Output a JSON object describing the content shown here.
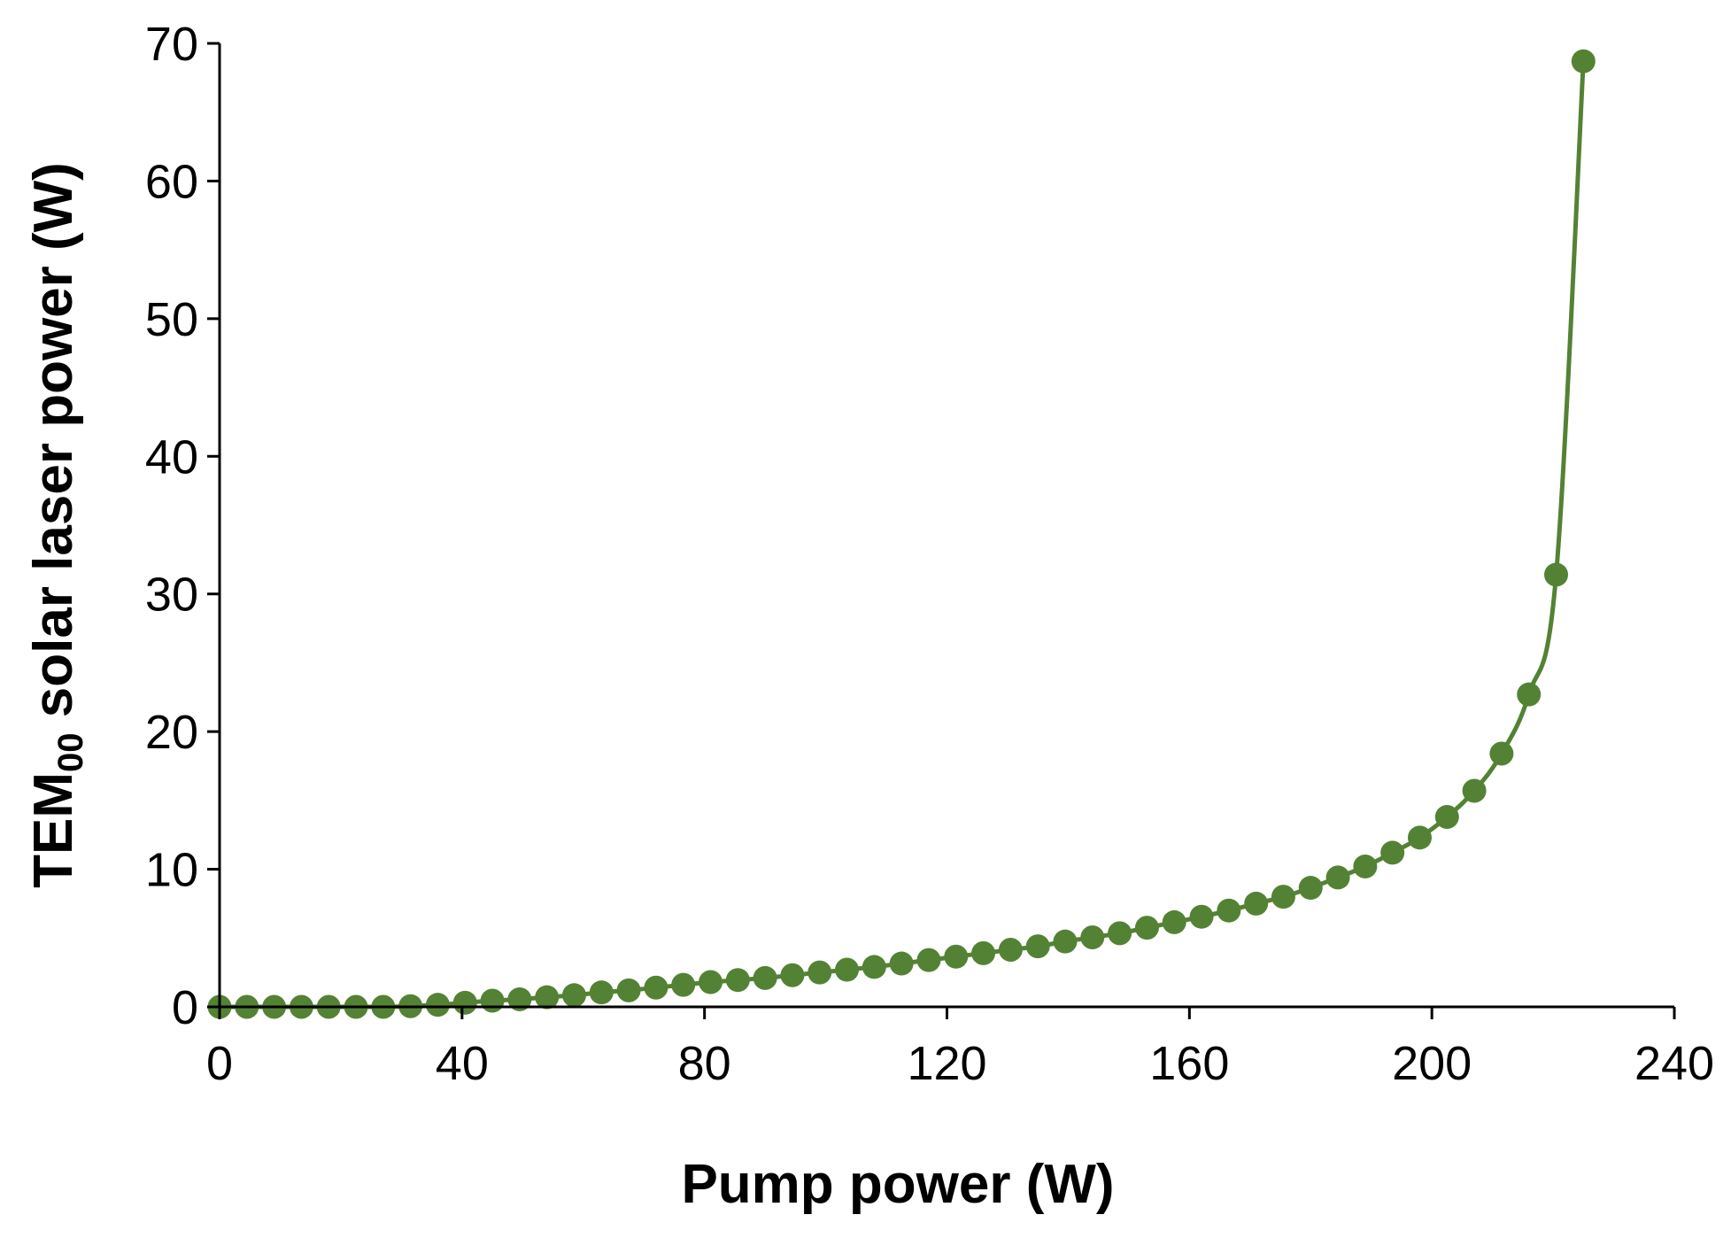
{
  "chart_data": {
    "type": "scatter",
    "title": "",
    "xlabel": "Pump power (W)",
    "ylabel": {
      "prefix": "TEM",
      "subscript": "00",
      "suffix": " solar laser power (W)"
    },
    "xlim": [
      0,
      240
    ],
    "ylim": [
      0,
      70
    ],
    "x_ticks": [
      0,
      40,
      80,
      120,
      160,
      200,
      240
    ],
    "y_ticks": [
      0,
      10,
      20,
      30,
      40,
      50,
      60,
      70
    ],
    "grid": false,
    "legend": "none",
    "series": [
      {
        "name": "TEM00 solar laser power",
        "color": "#548235",
        "marker": "circle",
        "line": "smooth",
        "points": [
          [
            0,
            0
          ],
          [
            4.5,
            0
          ],
          [
            9,
            0
          ],
          [
            13.5,
            0
          ],
          [
            18,
            0
          ],
          [
            22.5,
            0
          ],
          [
            27,
            0
          ],
          [
            31.5,
            0.05
          ],
          [
            36,
            0.15
          ],
          [
            40.5,
            0.3
          ],
          [
            45,
            0.45
          ],
          [
            49.5,
            0.55
          ],
          [
            54,
            0.7
          ],
          [
            58.5,
            0.85
          ],
          [
            63,
            1.05
          ],
          [
            67.5,
            1.2
          ],
          [
            72,
            1.4
          ],
          [
            76.5,
            1.6
          ],
          [
            81,
            1.8
          ],
          [
            85.5,
            1.95
          ],
          [
            90,
            2.1
          ],
          [
            94.5,
            2.3
          ],
          [
            99,
            2.5
          ],
          [
            103.5,
            2.7
          ],
          [
            108,
            2.9
          ],
          [
            112.5,
            3.15
          ],
          [
            117,
            3.4
          ],
          [
            121.5,
            3.65
          ],
          [
            126,
            3.9
          ],
          [
            130.5,
            4.15
          ],
          [
            135,
            4.4
          ],
          [
            139.5,
            4.75
          ],
          [
            144,
            5.05
          ],
          [
            148.5,
            5.35
          ],
          [
            153,
            5.75
          ],
          [
            157.5,
            6.15
          ],
          [
            162,
            6.55
          ],
          [
            166.5,
            7.0
          ],
          [
            171,
            7.5
          ],
          [
            175.5,
            8.0
          ],
          [
            180,
            8.65
          ],
          [
            184.5,
            9.4
          ],
          [
            189,
            10.2
          ],
          [
            193.5,
            11.2
          ],
          [
            198,
            12.3
          ],
          [
            202.5,
            13.8
          ],
          [
            207,
            15.7
          ],
          [
            211.5,
            18.4
          ],
          [
            216,
            22.7
          ],
          [
            220.5,
            31.4
          ],
          [
            225,
            68.7
          ]
        ]
      }
    ]
  }
}
